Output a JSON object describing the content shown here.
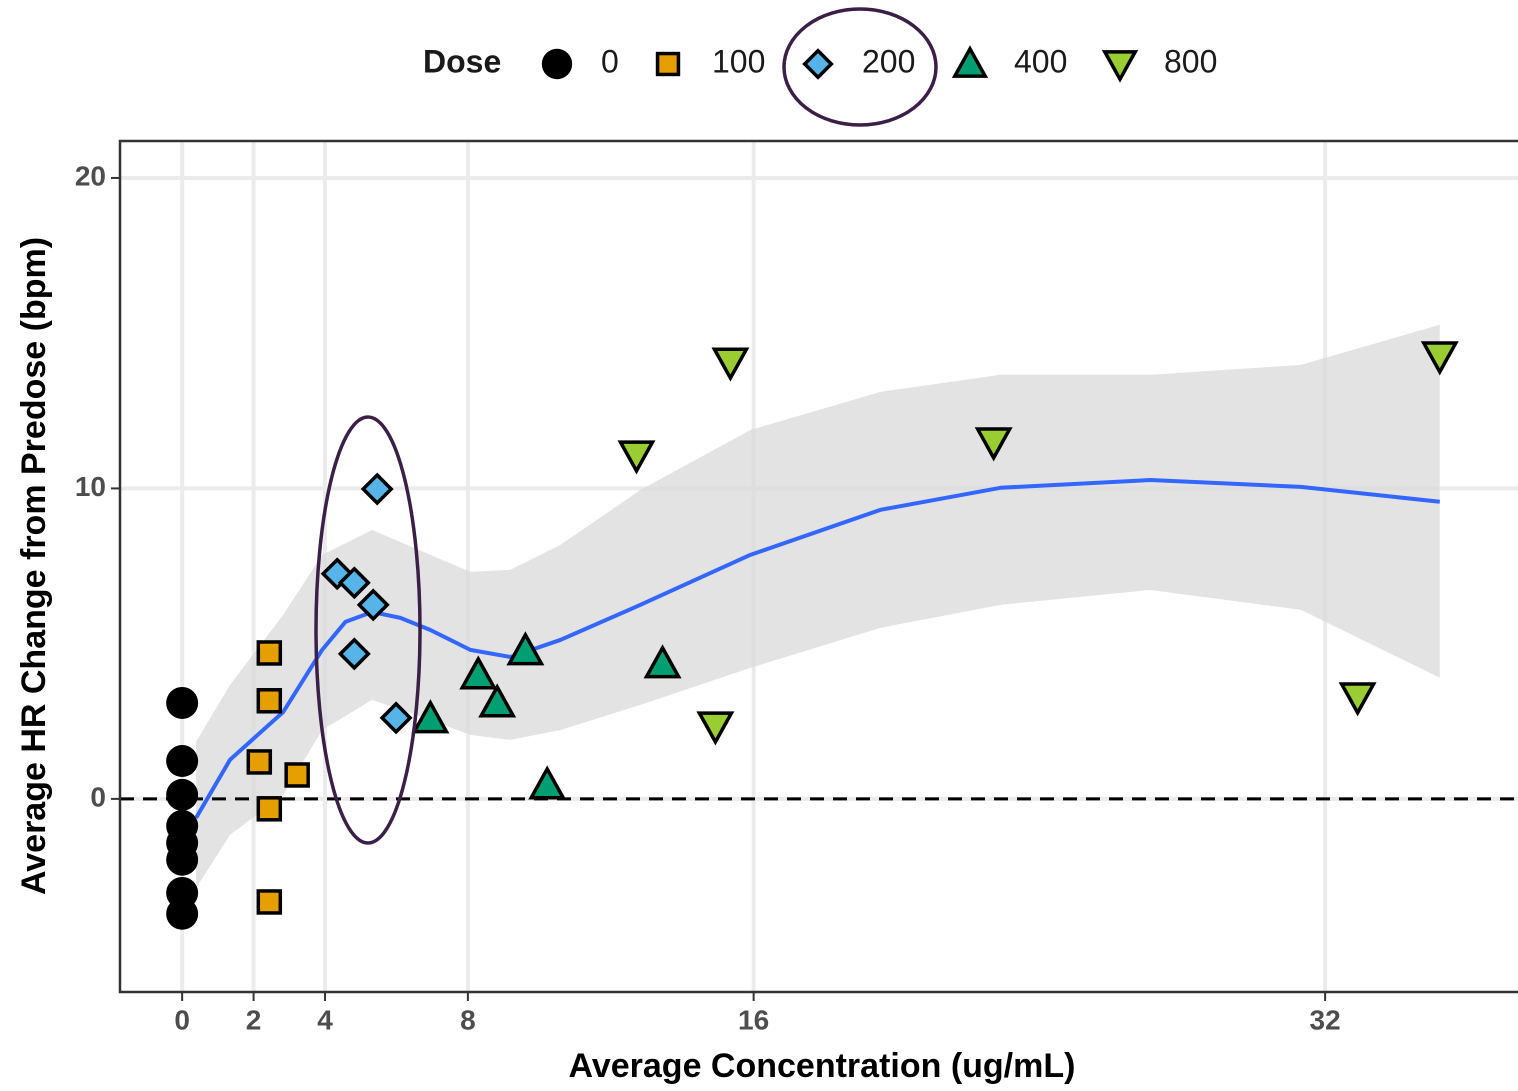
{
  "chart_data": {
    "type": "scatter",
    "x_label": "Average Concentration (ug/mL)",
    "y_label": "Average HR Change from Predose (bpm)",
    "xlim": [
      -1.74,
      37.4
    ],
    "ylim": [
      -6.22,
      21.19
    ],
    "xticks": [
      0,
      2,
      4,
      8,
      16,
      32
    ],
    "yticks": [
      0,
      10,
      20
    ],
    "grid": true,
    "legend": "top",
    "legend_title": "Dose",
    "hline": 0,
    "series": [
      {
        "name": "0",
        "color": "#000000",
        "shape": "circle",
        "x": [
          0,
          0,
          0,
          0,
          0,
          0,
          0,
          0
        ],
        "values": [
          3.09,
          1.22,
          0.13,
          -0.87,
          -1.42,
          -1.96,
          -3.03,
          -3.7
        ]
      },
      {
        "name": "100",
        "color": "#E69F00",
        "shape": "square",
        "x": [
          2.44,
          2.44,
          2.16,
          3.22,
          2.44,
          2.44
        ],
        "values": [
          4.7,
          3.16,
          1.19,
          0.77,
          -0.32,
          -3.32
        ]
      },
      {
        "name": "200",
        "color": "#56B4E9",
        "shape": "diamond",
        "x": [
          5.46,
          4.34,
          4.82,
          5.35,
          4.82,
          5.99
        ],
        "values": [
          9.98,
          7.25,
          6.96,
          6.25,
          4.67,
          2.61
        ]
      },
      {
        "name": "400",
        "color": "#009E73",
        "shape": "triangle",
        "x": [
          9.61,
          8.29,
          8.82,
          6.95,
          13.45,
          10.22
        ],
        "values": [
          4.77,
          3.99,
          3.09,
          2.58,
          4.35,
          0.45
        ]
      },
      {
        "name": "800",
        "color": "#9ACD32",
        "shape": "triangle-down",
        "x": [
          15.35,
          12.72,
          22.72,
          14.93,
          32.91,
          35.21
        ],
        "values": [
          14.07,
          11.08,
          11.5,
          2.35,
          3.29,
          14.27
        ]
      }
    ],
    "smooth": {
      "color": "#3366FF",
      "x": [
        0.39,
        1.34,
        2.83,
        3.92,
        4.57,
        5.32,
        6.11,
        6.95,
        8.07,
        9.19,
        10.59,
        12.83,
        15.91,
        19.55,
        22.91,
        27.11,
        31.32,
        35.21
      ],
      "values": [
        -0.61,
        1.26,
        2.8,
        4.8,
        5.7,
        6.02,
        5.83,
        5.44,
        4.8,
        4.57,
        5.12,
        6.25,
        7.86,
        9.31,
        10.02,
        10.27,
        10.05,
        9.57
      ]
    },
    "band": {
      "color": "#d9d9d9",
      "x": [
        0.39,
        1.34,
        2.83,
        3.92,
        5.32,
        6.95,
        8.07,
        9.19,
        10.59,
        12.83,
        15.91,
        19.55,
        22.91,
        27.11,
        31.32,
        35.21
      ],
      "upper": [
        1.84,
        3.67,
        5.93,
        7.86,
        8.66,
        7.86,
        7.31,
        7.38,
        8.18,
        9.95,
        11.88,
        13.11,
        13.66,
        13.66,
        13.98,
        15.27
      ],
      "lower": [
        -2.87,
        -1.16,
        0.13,
        2.22,
        3.19,
        2.54,
        2.06,
        1.9,
        2.22,
        3.03,
        4.22,
        5.51,
        6.25,
        6.73,
        6.09,
        3.9
      ]
    }
  }
}
